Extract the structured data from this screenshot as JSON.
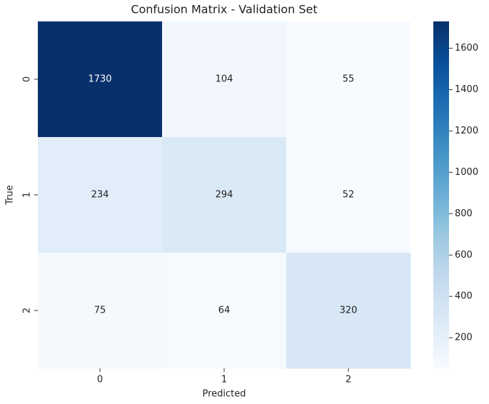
{
  "chart_data": {
    "type": "heatmap",
    "title": "Confusion Matrix - Validation Set",
    "xlabel": "Predicted",
    "ylabel": "True",
    "x_categories": [
      "0",
      "1",
      "2"
    ],
    "y_categories": [
      "0",
      "1",
      "2"
    ],
    "values": [
      [
        1730,
        104,
        55
      ],
      [
        234,
        294,
        52
      ],
      [
        75,
        64,
        320
      ]
    ],
    "colormap": "Blues",
    "clim": [
      52,
      1730
    ],
    "cticks": [
      200,
      400,
      600,
      800,
      1000,
      1200,
      1400,
      1600
    ]
  }
}
